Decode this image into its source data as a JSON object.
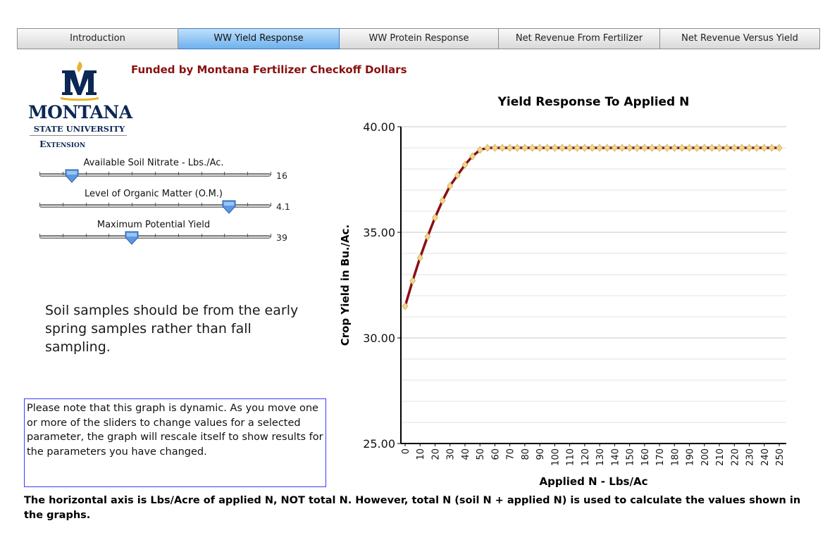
{
  "tabs": [
    {
      "label": "Introduction",
      "active": false
    },
    {
      "label": "WW Yield Response",
      "active": true
    },
    {
      "label": "WW Protein Response",
      "active": false
    },
    {
      "label": "Net Revenue From Fertilizer",
      "active": false
    },
    {
      "label": "Net Revenue Versus Yield",
      "active": false
    }
  ],
  "funded_text": "Funded by Montana Fertilizer Checkoff Dollars",
  "logo": {
    "word": "MONTANA",
    "university": "STATE UNIVERSITY",
    "extension": "Extension"
  },
  "sliders": [
    {
      "label": "Available Soil Nitrate - Lbs./Ac.",
      "value": "16",
      "position": 0.14
    },
    {
      "label": "Level of Organic Matter (O.M.)",
      "value": "4.1",
      "position": 0.82
    },
    {
      "label": "Maximum Potential Yield",
      "value": "39",
      "position": 0.4
    }
  ],
  "note": "Soil samples should be from the early spring samples rather than fall sampling.",
  "info": "Please note that this graph is dynamic. As you move one or more of the sliders to change values for a selected parameter, the graph will rescale itself to show results for the parameters you have changed.",
  "footer": "The horizontal axis is Lbs/Acre of applied N, NOT total N. However, total N (soil N + applied N) is used to calculate the values shown in the graphs.",
  "colors": {
    "line": "#8b0f12",
    "marker": "#f0d889",
    "marker_stroke": "#c9b060",
    "active_tab": "#6fb1ee",
    "funded": "#8a1010",
    "logo_gold": "#e6b32a",
    "logo_blue": "#0b2755"
  },
  "chart_data": {
    "type": "line",
    "title": "Yield Response To Applied N",
    "xlabel": "Applied N - Lbs/Ac",
    "ylabel": "Crop Yield in Bu./Ac.",
    "ylim": [
      25,
      40
    ],
    "yticks": [
      "25.00",
      "30.00",
      "35.00",
      "40.00"
    ],
    "grid": true,
    "x": [
      0,
      5,
      10,
      15,
      20,
      25,
      30,
      35,
      40,
      45,
      50,
      55,
      60,
      65,
      70,
      75,
      80,
      85,
      90,
      95,
      100,
      105,
      110,
      115,
      120,
      125,
      130,
      135,
      140,
      145,
      150,
      155,
      160,
      165,
      170,
      175,
      180,
      185,
      190,
      195,
      200,
      205,
      210,
      215,
      220,
      225,
      230,
      235,
      240,
      245,
      250
    ],
    "series": [
      {
        "values": [
          31.5,
          32.7,
          33.8,
          34.8,
          35.7,
          36.5,
          37.2,
          37.7,
          38.2,
          38.6,
          38.9,
          39.0,
          39.0,
          39.0,
          39.0,
          39.0,
          39.0,
          39.0,
          39.0,
          39.0,
          39.0,
          39.0,
          39.0,
          39.0,
          39.0,
          39.0,
          39.0,
          39.0,
          39.0,
          39.0,
          39.0,
          39.0,
          39.0,
          39.0,
          39.0,
          39.0,
          39.0,
          39.0,
          39.0,
          39.0,
          39.0,
          39.0,
          39.0,
          39.0,
          39.0,
          39.0,
          39.0,
          39.0,
          39.0,
          39.0,
          39.0
        ]
      }
    ],
    "xtick_labels": [
      "0",
      "10",
      "20",
      "30",
      "40",
      "50",
      "60",
      "70",
      "80",
      "90",
      "100",
      "110",
      "120",
      "130",
      "140",
      "150",
      "160",
      "170",
      "180",
      "190",
      "200",
      "210",
      "220",
      "230",
      "240",
      "250"
    ]
  }
}
